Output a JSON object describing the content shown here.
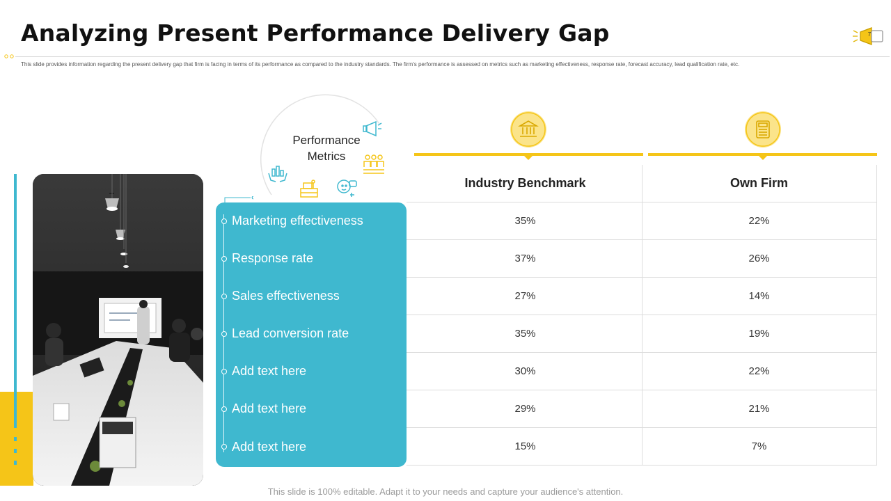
{
  "header": {
    "title": "Analyzing Present Performance Delivery Gap",
    "subtitle": "This slide provides information regarding the present delivery gap that firm is facing in terms of its performance as compared  to the industry standards. The firm's performance is assessed on metrics such as marketing effectiveness, response rate, forecast accuracy, lead qualification rate, etc.",
    "page_number": "7"
  },
  "metrics_block": {
    "heading": [
      "Performance",
      "Metrics"
    ],
    "items": [
      "Marketing effectiveness",
      "Response rate",
      "Sales effectiveness",
      "Lead conversion rate",
      "Add text here",
      "Add text here",
      "Add text here"
    ]
  },
  "table": {
    "columns": [
      "Industry Benchmark",
      "Own Firm"
    ],
    "column_icons": [
      "bank-icon",
      "calculator-document-icon"
    ],
    "rows": [
      [
        "35%",
        "22%"
      ],
      [
        "37%",
        "26%"
      ],
      [
        "27%",
        "14%"
      ],
      [
        "35%",
        "19%"
      ],
      [
        "30%",
        "22%"
      ],
      [
        "29%",
        "21%"
      ],
      [
        "15%",
        "7%"
      ]
    ]
  },
  "footer": {
    "note": "This slide is 100% editable. Adapt it to your needs and capture your audience's attention."
  },
  "colors": {
    "accent_yellow": "#f5c518",
    "accent_teal": "#3fb8cf",
    "icon_circle": "#fbe48a"
  }
}
